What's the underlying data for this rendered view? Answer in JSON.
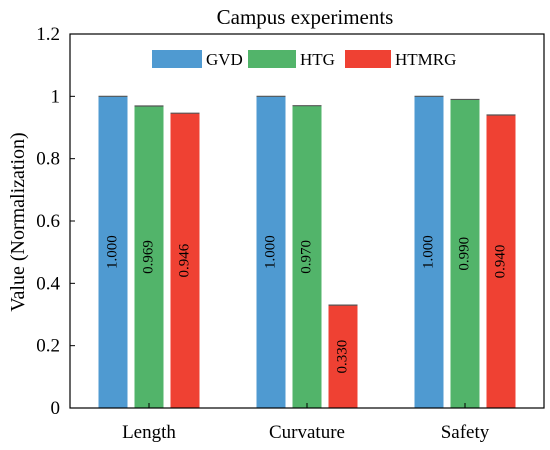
{
  "chart_data": {
    "type": "bar",
    "title": "Campus experiments",
    "xlabel": "",
    "ylabel": "Value (Normalization)",
    "categories": [
      "Length",
      "Curvature",
      "Safety"
    ],
    "series": [
      {
        "name": "GVD",
        "values": [
          1.0,
          1.0,
          1.0
        ],
        "labels": [
          "1.000",
          "1.000",
          "1.000"
        ],
        "color": "#4f9ad1"
      },
      {
        "name": "HTG",
        "values": [
          0.969,
          0.97,
          0.99
        ],
        "labels": [
          "0.969",
          "0.970",
          "0.990"
        ],
        "color": "#52b46a"
      },
      {
        "name": "HTMRG",
        "values": [
          0.946,
          0.33,
          0.94
        ],
        "labels": [
          "0.946",
          "0.330",
          "0.940"
        ],
        "color": "#ef4133"
      }
    ],
    "ylim": [
      0,
      1.2
    ],
    "yticks": [
      0,
      0.2,
      0.4,
      0.6,
      0.8,
      1,
      1.2
    ],
    "ytick_labels": [
      "0",
      "0.2",
      "0.4",
      "0.6",
      "0.8",
      "1",
      "1.2"
    ],
    "grid": false,
    "legend_position": "top-center"
  }
}
